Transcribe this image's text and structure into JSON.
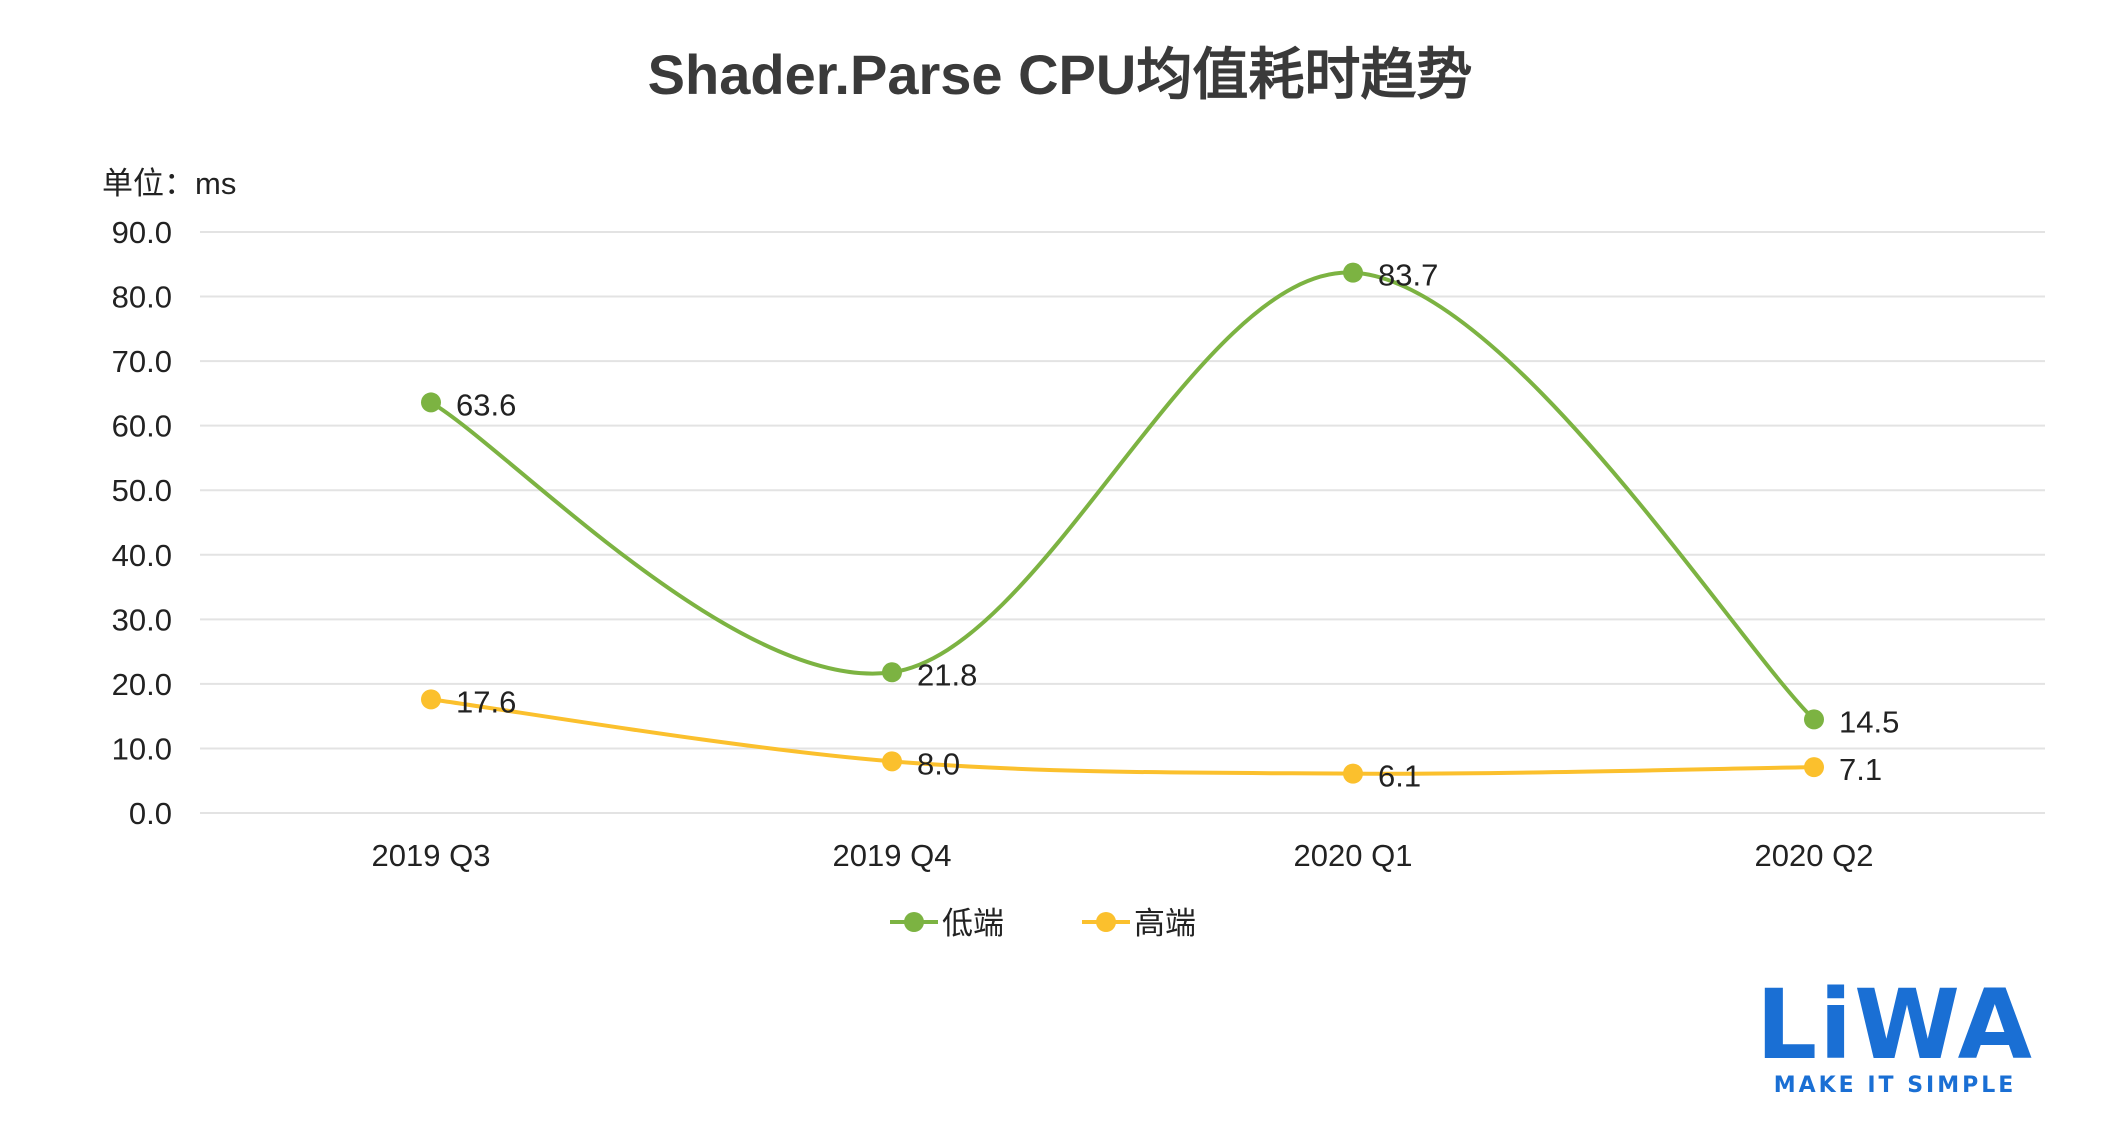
{
  "chart_data": {
    "type": "line",
    "title": "Shader.Parse CPU均值耗时趋势",
    "unit_label": "单位：ms",
    "categories": [
      "2019 Q3",
      "2019 Q4",
      "2020 Q1",
      "2020 Q2"
    ],
    "y_ticks": [
      "0.0",
      "10.0",
      "20.0",
      "30.0",
      "40.0",
      "50.0",
      "60.0",
      "70.0",
      "80.0",
      "90.0"
    ],
    "ylim": [
      0,
      90
    ],
    "grid": true,
    "legend_position": "bottom",
    "smooth": true,
    "series": [
      {
        "name": "低端",
        "color": "#7cb342",
        "values": [
          63.6,
          21.8,
          83.7,
          14.5
        ],
        "labels": [
          "63.6",
          "21.8",
          "83.7",
          "14.5"
        ]
      },
      {
        "name": "高端",
        "color": "#fbc02d",
        "values": [
          17.6,
          8.0,
          6.1,
          7.1
        ],
        "labels": [
          "17.6",
          "8.0",
          "6.1",
          "7.1"
        ]
      }
    ]
  },
  "logo": {
    "wordmark": "LiWA",
    "tagline": "MAKE IT SIMPLE",
    "color": "#1a6fd4"
  }
}
